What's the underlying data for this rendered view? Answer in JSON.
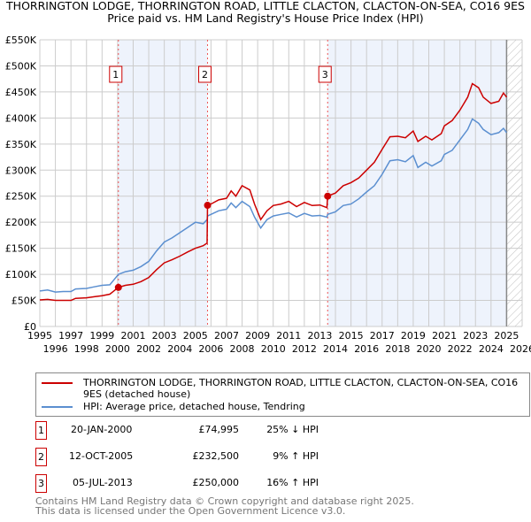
{
  "title": "THORRINGTON LODGE, THORRINGTON ROAD, LITTLE CLACTON, CLACTON-ON-SEA, CO16 9ES",
  "subtitle": "Price paid vs. HM Land Registry's House Price Index (HPI)",
  "chart_data": {
    "type": "line",
    "title": "THORRINGTON LODGE, THORRINGTON ROAD, LITTLE CLACTON, CLACTON-ON-SEA, CO16 9ES",
    "xlim": [
      1995,
      2026
    ],
    "ylim": [
      0,
      550000
    ],
    "x_ticks": [
      "1995",
      "1996",
      "1997",
      "1998",
      "1999",
      "2000",
      "2001",
      "2002",
      "2003",
      "2004",
      "2005",
      "2006",
      "2007",
      "2008",
      "2009",
      "2010",
      "2011",
      "2012",
      "2013",
      "2014",
      "2015",
      "2016",
      "2017",
      "2018",
      "2019",
      "2020",
      "2021",
      "2022",
      "2023",
      "2024",
      "2025",
      "2026"
    ],
    "y_ticks": [
      "£0",
      "£50K",
      "£100K",
      "£150K",
      "£200K",
      "£250K",
      "£300K",
      "£350K",
      "£400K",
      "£450K",
      "£500K",
      "£550K"
    ],
    "grid": true,
    "colors": {
      "price": "#cc0000",
      "hpi": "#5b8fd0",
      "shade": "#eef3fc"
    },
    "x": [
      1995.0,
      1995.5,
      1996.0,
      1996.5,
      1997.0,
      1997.3,
      1998.0,
      1998.5,
      1999.0,
      1999.5,
      2000.05,
      2000.5,
      2001,
      2001.5,
      2002,
      2002.5,
      2003,
      2003.5,
      2004,
      2004.5,
      2005,
      2005.5,
      2005.75,
      2005.78,
      2006,
      2006.5,
      2007,
      2007.3,
      2007.6,
      2008,
      2008.5,
      2008.8,
      2009.2,
      2009.6,
      2010,
      2010.5,
      2011,
      2011.5,
      2012,
      2012.5,
      2013,
      2013.45,
      2013.5,
      2014,
      2014.5,
      2015,
      2015.5,
      2016,
      2016.5,
      2017,
      2017.5,
      2018,
      2018.5,
      2019,
      2019.3,
      2019.8,
      2020.2,
      2020.8,
      2021,
      2021.5,
      2022,
      2022.5,
      2022.8,
      2023.2,
      2023.5,
      2024,
      2024.5,
      2024.8,
      2025.0
    ],
    "series": [
      {
        "name": "THORRINGTON LODGE, THORRINGTON ROAD, LITTLE CLACTON, CLACTON-ON-SEA, CO16 9ES (detached house)",
        "key": "price",
        "values": [
          51000,
          52000,
          50000,
          50000,
          50000,
          54000,
          55000,
          57000,
          59000,
          62000,
          74995,
          79000,
          81000,
          86000,
          94000,
          109000,
          122000,
          128000,
          135000,
          143000,
          150000,
          155000,
          160000,
          232500,
          235000,
          243000,
          246000,
          260000,
          250000,
          270000,
          262000,
          235000,
          205000,
          222000,
          232000,
          235000,
          240000,
          230000,
          238000,
          232000,
          233000,
          228000,
          250000,
          256000,
          270000,
          276000,
          285000,
          300000,
          315000,
          340000,
          364000,
          365000,
          362000,
          375000,
          355000,
          365000,
          358000,
          370000,
          385000,
          395000,
          415000,
          440000,
          466000,
          458000,
          440000,
          428000,
          432000,
          448000,
          440000
        ]
      },
      {
        "name": "HPI: Average price, detached house, Tendring",
        "key": "hpi",
        "values": [
          68000,
          70000,
          66000,
          67000,
          67000,
          72000,
          73000,
          76000,
          79000,
          80000,
          100000,
          105000,
          108000,
          115000,
          125000,
          145000,
          162000,
          170000,
          180000,
          190000,
          200000,
          197000,
          205000,
          212000,
          215000,
          222000,
          225000,
          237000,
          228000,
          240000,
          230000,
          210000,
          189000,
          205000,
          212000,
          215000,
          218000,
          210000,
          217000,
          212000,
          213000,
          210000,
          215000,
          220000,
          232000,
          235000,
          245000,
          258000,
          270000,
          292000,
          318000,
          320000,
          316000,
          328000,
          305000,
          315000,
          308000,
          318000,
          330000,
          338000,
          358000,
          378000,
          398000,
          390000,
          378000,
          368000,
          372000,
          380000,
          372000
        ]
      }
    ],
    "sales": [
      {
        "id": "1",
        "year": 2000.05,
        "price": 74995
      },
      {
        "id": "2",
        "year": 2005.78,
        "price": 232500
      },
      {
        "id": "3",
        "year": 2013.5,
        "price": 250000
      }
    ],
    "shaded_ranges": [
      [
        2000.05,
        2005.78
      ],
      [
        2013.5,
        2025.0
      ]
    ],
    "forecast_hatch_from": 2025.0
  },
  "legend": {
    "price_label": "THORRINGTON LODGE, THORRINGTON ROAD, LITTLE CLACTON, CLACTON-ON-SEA, CO16 9ES (detached house)",
    "hpi_label": "HPI: Average price, detached house, Tendring"
  },
  "transactions": [
    {
      "num": "1",
      "date": "20-JAN-2000",
      "price": "£74,995",
      "hpi": "25% ↓ HPI"
    },
    {
      "num": "2",
      "date": "12-OCT-2005",
      "price": "£232,500",
      "hpi": "9% ↑ HPI"
    },
    {
      "num": "3",
      "date": "05-JUL-2013",
      "price": "£250,000",
      "hpi": "16% ↑ HPI"
    }
  ],
  "footer": {
    "line1": "Contains HM Land Registry data © Crown copyright and database right 2025.",
    "line2": "This data is licensed under the Open Government Licence v3.0."
  }
}
